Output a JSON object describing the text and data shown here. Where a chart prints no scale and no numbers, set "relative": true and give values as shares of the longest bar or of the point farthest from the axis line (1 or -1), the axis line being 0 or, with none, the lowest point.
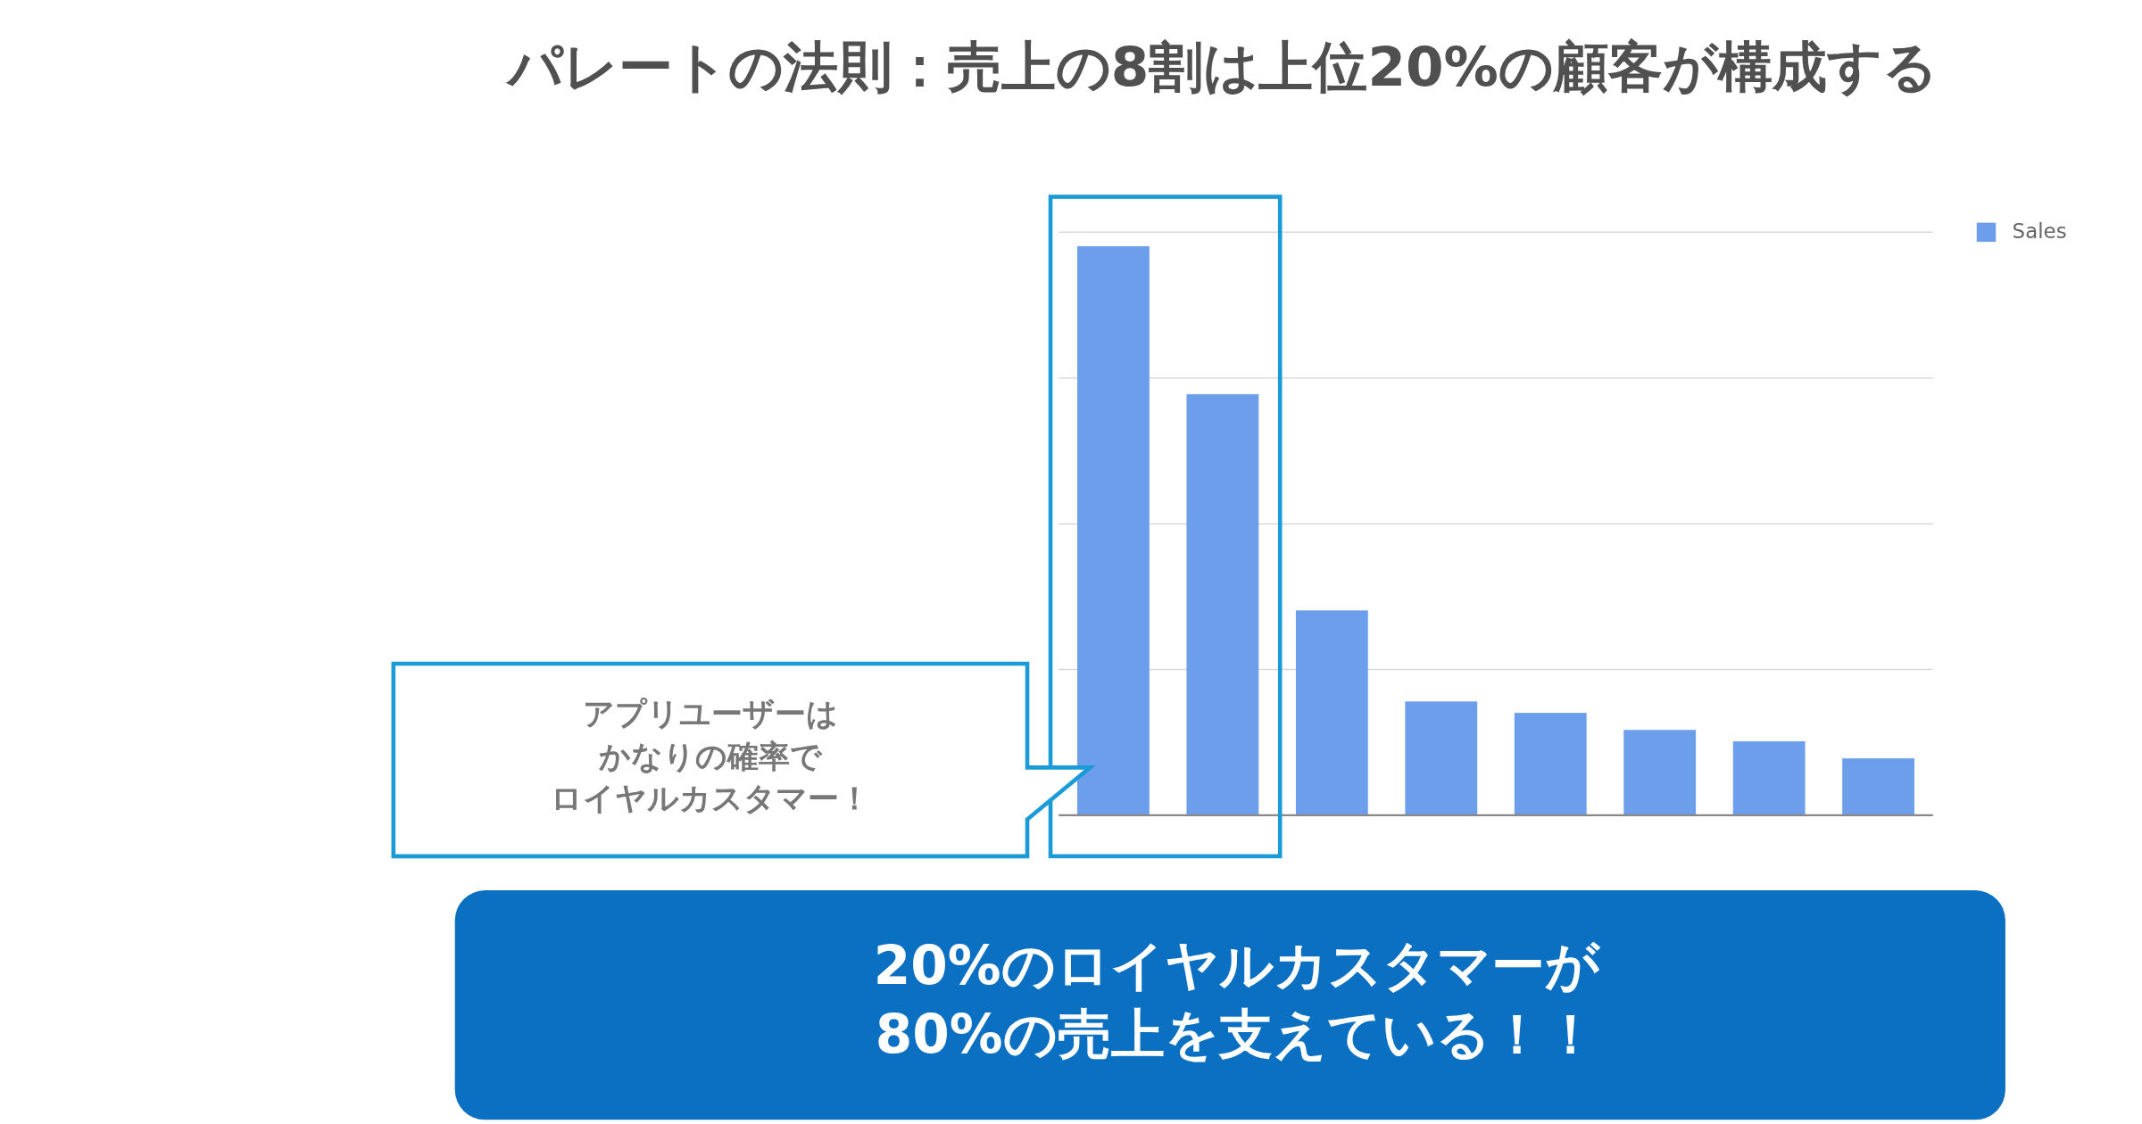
{
  "chart_data": {
    "type": "bar",
    "title": "パレートの法則：売上の8割は上位20%の顧客が構成する",
    "categories": [
      null,
      null,
      null,
      null,
      null,
      null,
      null,
      null
    ],
    "series": [
      {
        "name": "Sales",
        "color": "#6d9eeb",
        "values": [
          1,
          0.74,
          0.36,
          0.2,
          0.18,
          0.15,
          0.13,
          0.1
        ]
      }
    ],
    "relative": true,
    "grid": "y",
    "legend": "top right",
    "annotations": [
      "アプリユーザーは",
      "かなりの確率で",
      "ロイヤルカスタマー！",
      "20%のロイヤルカスタマーが",
      "80%の売上を支えている！！"
    ]
  }
}
